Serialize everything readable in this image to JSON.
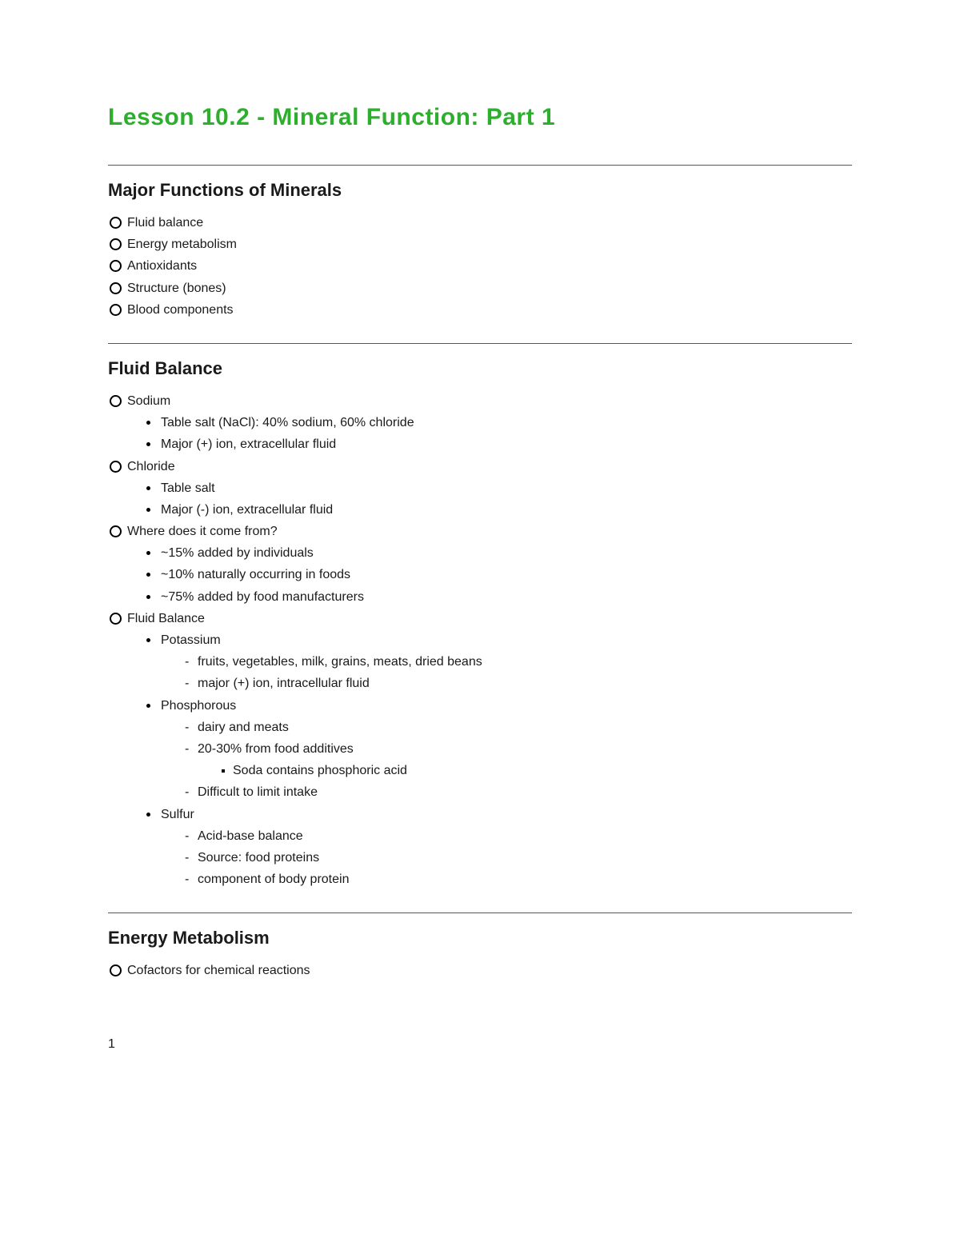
{
  "title": "Lesson 10.2 - Mineral Function: Part 1",
  "colors": {
    "title": "#2daf2d",
    "text": "#1a1a1a",
    "rule": "#555555",
    "background": "#ffffff"
  },
  "typography": {
    "title_fontsize": 30,
    "heading_fontsize": 22,
    "body_fontsize": 16,
    "font_family": "Comic Sans MS / handwritten-style"
  },
  "sections": [
    {
      "heading": "Major Functions of Minerals",
      "items": [
        {
          "text": "Fluid balance"
        },
        {
          "text": "Energy metabolism"
        },
        {
          "text": "Antioxidants"
        },
        {
          "text": "Structure (bones)"
        },
        {
          "text": "Blood components"
        }
      ]
    },
    {
      "heading": "Fluid Balance",
      "items": [
        {
          "text": "Sodium",
          "children": [
            {
              "text": "Table salt (NaCl): 40% sodium, 60% chloride"
            },
            {
              "text": "Major (+) ion, extracellular fluid"
            }
          ]
        },
        {
          "text": "Chloride",
          "children": [
            {
              "text": "Table salt"
            },
            {
              "text": "Major (-) ion, extracellular fluid"
            }
          ]
        },
        {
          "text": "Where does it come from?",
          "children": [
            {
              "text": "~15% added by individuals"
            },
            {
              "text": "~10% naturally occurring in foods"
            },
            {
              "text": "~75% added by food manufacturers"
            }
          ]
        },
        {
          "text": "Fluid Balance",
          "children": [
            {
              "text": "Potassium",
              "children": [
                {
                  "text": "fruits, vegetables, milk, grains, meats, dried beans"
                },
                {
                  "text": "major (+) ion, intracellular fluid"
                }
              ]
            },
            {
              "text": "Phosphorous",
              "children": [
                {
                  "text": "dairy and meats"
                },
                {
                  "text": "20-30% from food additives",
                  "children": [
                    {
                      "text": "Soda contains phosphoric acid"
                    }
                  ]
                },
                {
                  "text": "Difficult to limit intake"
                }
              ]
            },
            {
              "text": "Sulfur",
              "children": [
                {
                  "text": "Acid-base balance"
                },
                {
                  "text": "Source: food proteins"
                },
                {
                  "text": "component of body protein"
                }
              ]
            }
          ]
        }
      ]
    },
    {
      "heading": "Energy Metabolism",
      "items": [
        {
          "text": "Cofactors for chemical reactions"
        }
      ]
    }
  ],
  "page_number": "1"
}
